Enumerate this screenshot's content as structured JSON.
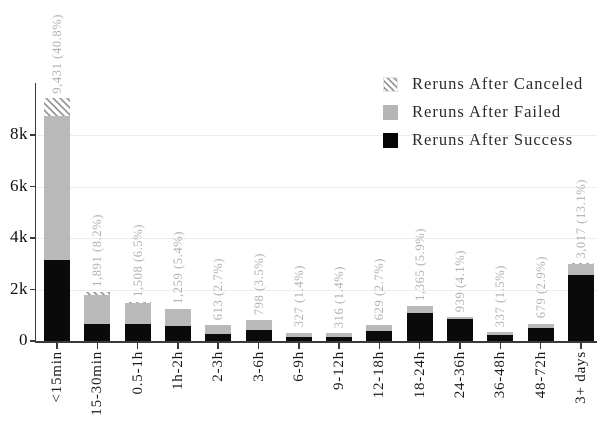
{
  "colors": {
    "bar_success": "#0a0a0a",
    "bar_failed": "#b9b9b9",
    "hatch_line": "#9a9a9a",
    "gridline": "#ececec",
    "axis": "#3a3a3a",
    "value_label": "#b1b1b1",
    "tick_label": "#1a1a1a"
  },
  "chart_data": {
    "type": "bar",
    "stacked": true,
    "title": "",
    "xlabel": "",
    "ylabel": "",
    "grid": "horizontal",
    "categories": [
      "<15min",
      "15-30min",
      "0.5-1h",
      "1h-2h",
      "2-3h",
      "3-6h",
      "6-9h",
      "9-12h",
      "12-18h",
      "18-24h",
      "24-36h",
      "36-48h",
      "48-72h",
      "3+ days"
    ],
    "bar_labels": [
      "9,431 (40.8%)",
      "1,891 (8.2%)",
      "1,508 (6.5%)",
      "1,259 (5.4%)",
      "613 (2.7%)",
      "798 (3.5%)",
      "327 (1.4%)",
      "316 (1.4%)",
      "629 (2.7%)",
      "1,365 (5.9%)",
      "939 (4.1%)",
      "337 (1.5%)",
      "679 (2.9%)",
      "3,017 (13.1%)"
    ],
    "totals": [
      9431,
      1891,
      1508,
      1259,
      613,
      798,
      327,
      316,
      629,
      1365,
      939,
      337,
      679,
      3017
    ],
    "series": [
      {
        "name": "Reruns After Success",
        "style": "black",
        "values": [
          3150,
          650,
          650,
          600,
          280,
          430,
          160,
          150,
          400,
          1080,
          840,
          250,
          510,
          2550
        ]
      },
      {
        "name": "Reruns After Failed",
        "style": "gray",
        "values": [
          5601,
          1151,
          818,
          634,
          333,
          368,
          167,
          166,
          229,
          285,
          99,
          87,
          169,
          427
        ]
      },
      {
        "name": "Reruns After Canceled",
        "style": "hatch",
        "values": [
          680,
          90,
          40,
          25,
          0,
          0,
          0,
          0,
          0,
          0,
          0,
          0,
          0,
          40
        ]
      }
    ],
    "y_axis": {
      "ticks": [
        "0",
        "2k",
        "4k",
        "6k",
        "8k"
      ],
      "tick_values": [
        0,
        2000,
        4000,
        6000,
        8000
      ],
      "ylim": [
        0,
        10000
      ]
    },
    "legend": {
      "position": "upper-right",
      "entries": [
        "Reruns After Canceled",
        "Reruns After Failed",
        "Reruns After Success"
      ]
    }
  }
}
